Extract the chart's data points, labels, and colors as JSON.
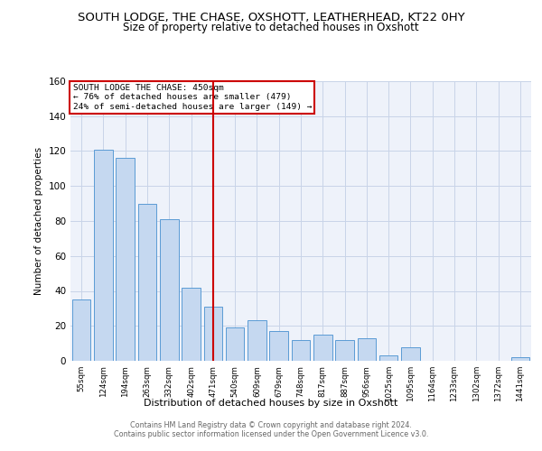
{
  "title": "SOUTH LODGE, THE CHASE, OXSHOTT, LEATHERHEAD, KT22 0HY",
  "subtitle": "Size of property relative to detached houses in Oxshott",
  "xlabel": "Distribution of detached houses by size in Oxshott",
  "ylabel": "Number of detached properties",
  "bar_labels": [
    "55sqm",
    "124sqm",
    "194sqm",
    "263sqm",
    "332sqm",
    "402sqm",
    "471sqm",
    "540sqm",
    "609sqm",
    "679sqm",
    "748sqm",
    "817sqm",
    "887sqm",
    "956sqm",
    "1025sqm",
    "1095sqm",
    "1164sqm",
    "1233sqm",
    "1302sqm",
    "1372sqm",
    "1441sqm"
  ],
  "bar_values": [
    35,
    121,
    116,
    90,
    81,
    42,
    31,
    19,
    23,
    17,
    12,
    15,
    12,
    13,
    3,
    8,
    0,
    0,
    0,
    0,
    2
  ],
  "bar_color": "#c5d8f0",
  "bar_edge_color": "#5b9bd5",
  "vline_x_index": 6,
  "vline_color": "#cc0000",
  "annotation_title": "SOUTH LODGE THE CHASE: 450sqm",
  "annotation_line1": "← 76% of detached houses are smaller (479)",
  "annotation_line2": "24% of semi-detached houses are larger (149) →",
  "annotation_box_color": "#cc0000",
  "ylim": [
    0,
    160
  ],
  "yticks": [
    0,
    20,
    40,
    60,
    80,
    100,
    120,
    140,
    160
  ],
  "footer_line1": "Contains HM Land Registry data © Crown copyright and database right 2024.",
  "footer_line2": "Contains public sector information licensed under the Open Government Licence v3.0.",
  "bg_color": "#ffffff",
  "plot_bg_color": "#eef2fa",
  "grid_color": "#c8d4e8",
  "title_fontsize": 9.5,
  "subtitle_fontsize": 8.5,
  "bar_width": 0.85
}
